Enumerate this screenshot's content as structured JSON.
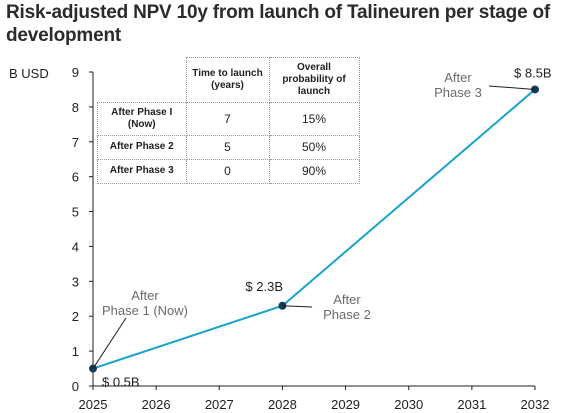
{
  "title": "Risk-adjusted NPV 10y from launch of Talineuren per stage of development",
  "chart_data": {
    "type": "line",
    "title": "Risk-adjusted NPV 10y from launch of Talineuren per stage of development",
    "ylabel": "B USD",
    "xlabel": "",
    "xlim": [
      2025,
      2032
    ],
    "ylim": [
      0,
      9
    ],
    "x_ticks": [
      "2025",
      "2026",
      "2027",
      "2028",
      "2029",
      "2030",
      "2031",
      "2032"
    ],
    "y_ticks": [
      "0",
      "1",
      "2",
      "3",
      "4",
      "5",
      "6",
      "7",
      "8",
      "9"
    ],
    "grid": false,
    "line_color": "#1aa3c9",
    "marker_color": "#123a5c",
    "series": [
      {
        "x": [
          2025,
          2028,
          2032
        ],
        "values": [
          0.5,
          2.3,
          8.5
        ],
        "value_labels": [
          "$ 0.5B",
          "$ 2.3B",
          "$ 8.5B"
        ],
        "point_labels": [
          "After Phase 1 (Now)",
          "After Phase 2",
          "After Phase 3"
        ]
      }
    ],
    "annotations": [
      {
        "lines": [
          "After",
          "Phase 1 (Now)"
        ]
      },
      {
        "lines": [
          "After",
          "Phase 2"
        ]
      },
      {
        "lines": [
          "After",
          "Phase 3"
        ]
      }
    ],
    "table": {
      "headers": [
        "",
        "Time to launch (years)",
        "Overall probability of launch"
      ],
      "rows": [
        [
          "After Phase I (Now)",
          "7",
          "15%"
        ],
        [
          "After Phase 2",
          "5",
          "50%"
        ],
        [
          "After Phase 3",
          "0",
          "90%"
        ]
      ]
    }
  }
}
